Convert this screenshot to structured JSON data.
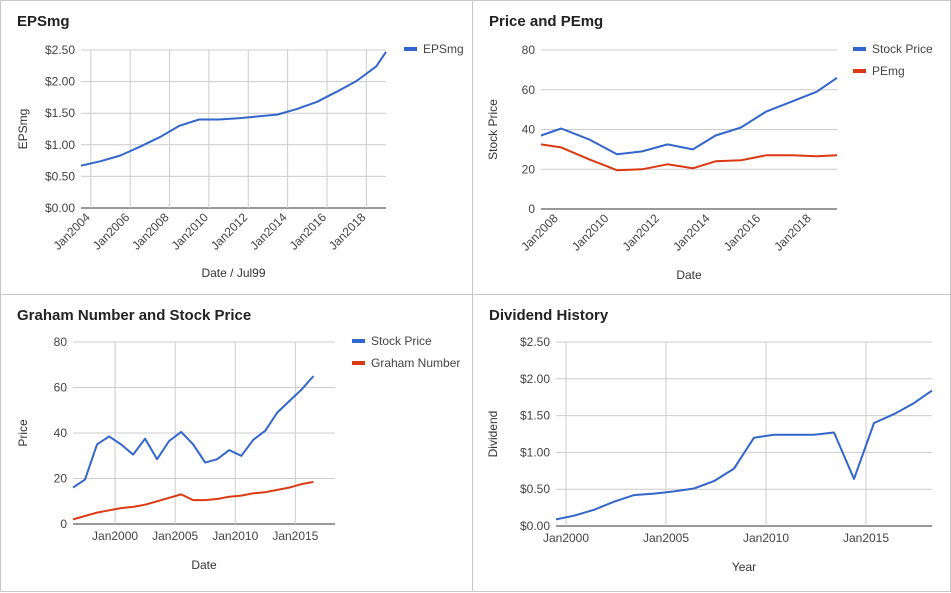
{
  "colors": {
    "blue": "#3366cc",
    "red": "#dc3912",
    "grid": "#cccccc",
    "axis": "#333333",
    "text": "#444444"
  },
  "chart_data": [
    {
      "type": "line",
      "title": "EPSmg",
      "xlabel": "Date / Jul99",
      "ylabel": "EPSmg",
      "xlim": [
        2003.5,
        2019.0
      ],
      "ylim": [
        0,
        2.5
      ],
      "y_ticks": [
        0,
        0.5,
        1.0,
        1.5,
        2.0,
        2.5
      ],
      "y_tick_labels": [
        "$0.00",
        "$0.50",
        "$1.00",
        "$1.50",
        "$2.00",
        "$2.50"
      ],
      "x_ticks": [
        2004,
        2006,
        2008,
        2010,
        2012,
        2014,
        2016,
        2018
      ],
      "x_tick_labels": [
        "Jan2004",
        "Jan2006",
        "Jan2008",
        "Jan2010",
        "Jan2012",
        "Jan2014",
        "Jan2016",
        "Jan2018"
      ],
      "x_tick_style": "rotated",
      "vgrid": true,
      "legend": "right",
      "series": [
        {
          "name": "EPSmg",
          "color": "#3366cc",
          "x": [
            2003.5,
            2004.5,
            2005.5,
            2006.5,
            2007.5,
            2008.5,
            2009.5,
            2010.5,
            2011.5,
            2012.5,
            2013.5,
            2014.5,
            2015.5,
            2016.5,
            2017.5,
            2018.5,
            2019.0
          ],
          "values": [
            0.67,
            0.74,
            0.83,
            0.97,
            1.12,
            1.3,
            1.4,
            1.4,
            1.42,
            1.45,
            1.48,
            1.57,
            1.68,
            1.84,
            2.01,
            2.24,
            2.47
          ]
        }
      ]
    },
    {
      "type": "line",
      "title": "Price and PEmg",
      "xlabel": "Date",
      "ylabel": "Stock Price",
      "xlim": [
        2007.3,
        2019.0
      ],
      "ylim": [
        0,
        80
      ],
      "y_ticks": [
        0,
        20,
        40,
        60,
        80
      ],
      "y_tick_labels": [
        "0",
        "20",
        "40",
        "60",
        "80"
      ],
      "x_ticks": [
        2008,
        2010,
        2012,
        2014,
        2016,
        2018
      ],
      "x_tick_labels": [
        "Jan2008",
        "Jan2010",
        "Jan2012",
        "Jan2014",
        "Jan2016",
        "Jan2018"
      ],
      "x_tick_style": "rotated",
      "vgrid": false,
      "legend": "right",
      "series": [
        {
          "name": "Stock Price",
          "color": "#3366cc",
          "x": [
            2007.3,
            2008.1,
            2009.2,
            2010.3,
            2011.3,
            2012.3,
            2013.3,
            2014.2,
            2015.2,
            2016.2,
            2017.2,
            2018.2,
            2019.0
          ],
          "values": [
            37,
            40.5,
            35,
            27.5,
            29,
            32.5,
            30,
            37,
            41,
            49,
            54,
            59,
            66
          ]
        },
        {
          "name": "PEmg",
          "color": "#dc3912",
          "x": [
            2007.3,
            2008.1,
            2009.2,
            2010.3,
            2011.3,
            2012.3,
            2013.3,
            2014.2,
            2015.2,
            2016.2,
            2017.2,
            2018.2,
            2019.0
          ],
          "values": [
            32.5,
            31,
            25,
            19.5,
            20,
            22.5,
            20.5,
            24,
            24.5,
            27,
            27,
            26.5,
            27
          ]
        }
      ]
    },
    {
      "type": "line",
      "title": "Graham Number and Stock Price",
      "xlabel": "Date",
      "ylabel": "Price",
      "xlim": [
        1996.5,
        2018.3
      ],
      "ylim": [
        0,
        80
      ],
      "y_ticks": [
        0,
        20,
        40,
        60,
        80
      ],
      "y_tick_labels": [
        "0",
        "20",
        "40",
        "60",
        "80"
      ],
      "x_ticks": [
        2000,
        2005,
        2010,
        2015
      ],
      "x_tick_labels": [
        "Jan2000",
        "Jan2005",
        "Jan2010",
        "Jan2015"
      ],
      "x_tick_style": "flat",
      "vgrid": true,
      "legend": "right",
      "series": [
        {
          "name": "Stock Price",
          "color": "#3366cc",
          "x": [
            1996.5,
            1997.5,
            1998.5,
            1999.5,
            2000.5,
            2001.5,
            2002.5,
            2003.5,
            2004.5,
            2005.5,
            2006.5,
            2007.5,
            2008.5,
            2009.5,
            2010.5,
            2011.5,
            2012.5,
            2013.5,
            2014.5,
            2015.5,
            2016.5,
            2017.5,
            2018.3
          ],
          "values": [
            16,
            19.5,
            35,
            38.5,
            35,
            30.5,
            37.5,
            28.5,
            36.5,
            40.5,
            35,
            27,
            28.5,
            32.5,
            30,
            37,
            41,
            49,
            54,
            59,
            65,
            null,
            null
          ]
        },
        {
          "name": "Graham Number",
          "color": "#dc3912",
          "x": [
            1996.5,
            1997.5,
            1998.5,
            1999.5,
            2000.5,
            2001.5,
            2002.5,
            2003.5,
            2004.5,
            2005.5,
            2006.5,
            2007.5,
            2008.5,
            2009.5,
            2010.5,
            2011.5,
            2012.5,
            2013.5,
            2014.5,
            2015.5,
            2016.5,
            2017.5,
            2018.3
          ],
          "values": [
            2,
            3.5,
            5,
            6,
            7,
            7.5,
            8.5,
            10,
            11.5,
            13,
            10.5,
            10.5,
            11,
            12,
            12.5,
            13.5,
            14,
            15,
            16,
            17.5,
            18.5,
            null,
            null
          ]
        }
      ]
    },
    {
      "type": "line",
      "title": "Dividend History",
      "xlabel": "Year",
      "ylabel": "Dividend",
      "xlim": [
        1999.5,
        2018.3
      ],
      "ylim": [
        0,
        2.5
      ],
      "y_ticks": [
        0,
        0.5,
        1.0,
        1.5,
        2.0,
        2.5
      ],
      "y_tick_labels": [
        "$0.00",
        "$0.50",
        "$1.00",
        "$1.50",
        "$2.00",
        "$2.50"
      ],
      "x_ticks": [
        2000,
        2005,
        2010,
        2015
      ],
      "x_tick_labels": [
        "Jan2000",
        "Jan2005",
        "Jan2010",
        "Jan2015"
      ],
      "x_tick_style": "flat",
      "vgrid": true,
      "legend": "none",
      "series": [
        {
          "name": "",
          "color": "#3366cc",
          "x": [
            1999.5,
            2000.4,
            2001.4,
            2002.4,
            2003.4,
            2004.4,
            2005.4,
            2006.4,
            2007.4,
            2008.4,
            2009.4,
            2010.4,
            2011.4,
            2012.4,
            2013.4,
            2014.4,
            2015.4,
            2016.4,
            2017.4,
            2018.3
          ],
          "values": [
            0.09,
            0.14,
            0.22,
            0.33,
            0.42,
            0.44,
            0.47,
            0.51,
            0.61,
            0.78,
            1.2,
            1.24,
            1.24,
            1.24,
            1.27,
            0.64,
            1.4,
            1.52,
            1.67,
            1.84
          ]
        }
      ]
    }
  ]
}
